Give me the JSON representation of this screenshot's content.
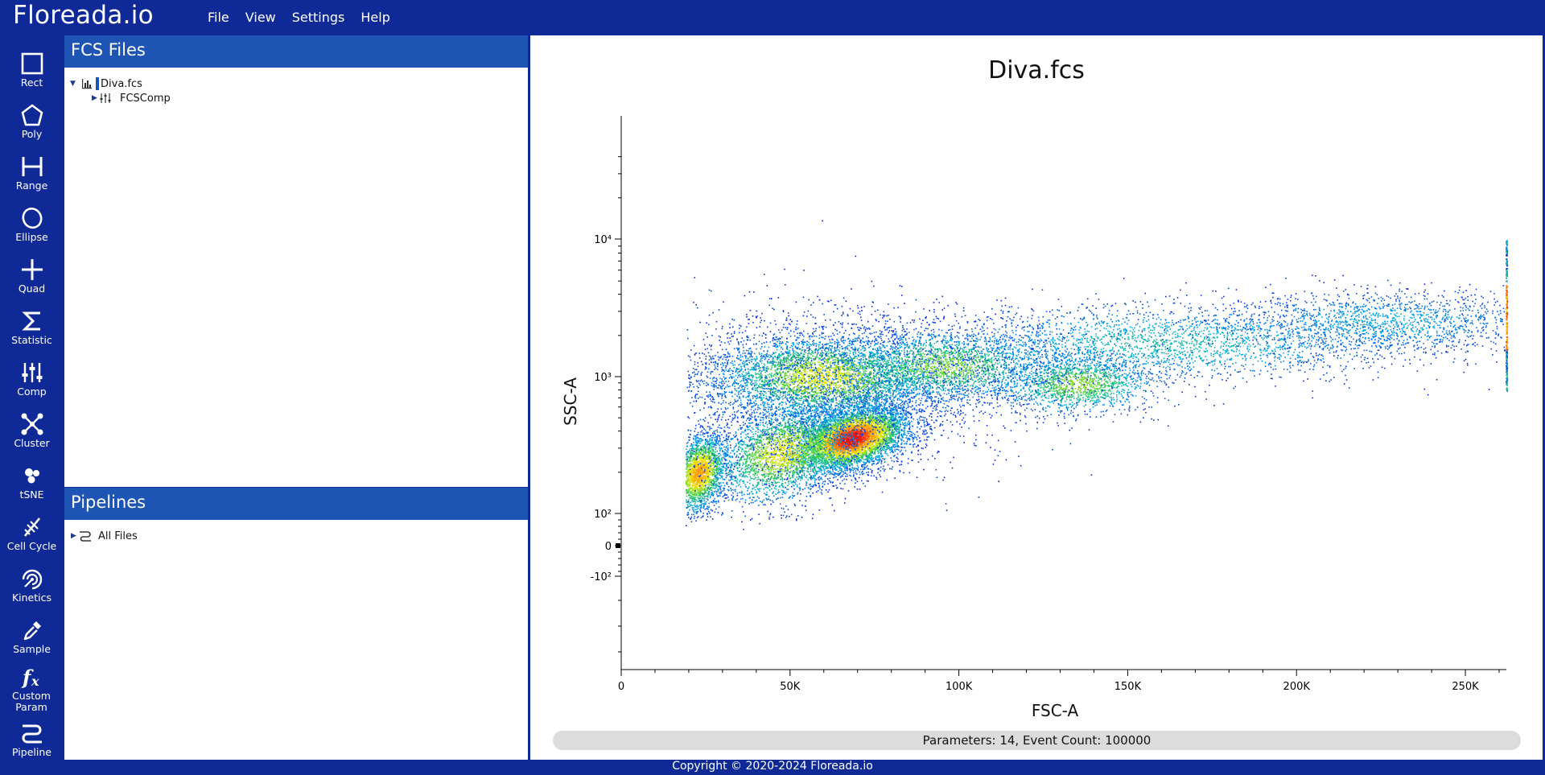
{
  "app": {
    "title": "Floreada.io"
  },
  "menu": [
    "File",
    "View",
    "Settings",
    "Help"
  ],
  "tools": [
    {
      "label": "Rect",
      "icon": "rect-icon"
    },
    {
      "label": "Poly",
      "icon": "polygon-icon"
    },
    {
      "label": "Range",
      "icon": "range-icon"
    },
    {
      "label": "Ellipse",
      "icon": "ellipse-icon"
    },
    {
      "label": "Quad",
      "icon": "quad-icon"
    },
    {
      "label": "Statistic",
      "icon": "sigma-icon"
    },
    {
      "label": "Comp",
      "icon": "sliders-icon"
    },
    {
      "label": "Cluster",
      "icon": "cluster-icon"
    },
    {
      "label": "tSNE",
      "icon": "tsne-icon"
    },
    {
      "label": "Cell Cycle",
      "icon": "dna-icon"
    },
    {
      "label": "Kinetics",
      "icon": "kinetics-icon"
    },
    {
      "label": "Sample",
      "icon": "pipette-icon"
    },
    {
      "label": "Custom Param",
      "icon": "fx-icon"
    },
    {
      "label": "Pipeline",
      "icon": "pipeline-icon"
    }
  ],
  "fcs_panel": {
    "title": "FCS Files",
    "file": "Diva.fcs",
    "child": "FCSComp"
  },
  "pipelines_panel": {
    "title": "Pipelines",
    "item": "All Files"
  },
  "plot": {
    "title": "Diva.fcs",
    "status": "Parameters: 14, Event Count: 100000"
  },
  "chart_data": {
    "type": "scatter",
    "title": "Diva.fcs",
    "xlabel": "FSC-A",
    "ylabel": "SSC-A",
    "x_scale": "linear",
    "y_scale": "biexponential (logicle)",
    "xlim": [
      0,
      262144
    ],
    "x_ticks": [
      "0",
      "50K",
      "100K",
      "150K",
      "200K",
      "250K"
    ],
    "y_ticks": [
      "-10²",
      "0",
      "10²",
      "10³",
      "10⁴"
    ],
    "color_scale": "density (blue → green → yellow → red)",
    "populations": [
      {
        "description": "densest cluster (red)",
        "fsc_center": 68000,
        "ssc_center": 350
      },
      {
        "description": "left cluster (yellow)",
        "fsc_center": 22000,
        "ssc_center": 200
      },
      {
        "description": "upper band (green)",
        "fsc_center": 60000,
        "ssc_center": 1000
      },
      {
        "description": "mid band (green)",
        "fsc_center": 135000,
        "ssc_center": 900
      },
      {
        "description": "sparse tail (blue)",
        "fsc_range": [
          150000,
          262000
        ],
        "ssc_center": 2500
      }
    ],
    "event_count": 100000
  },
  "footer": {
    "text": "Copyright © 2020-2024 Floreada.io"
  }
}
